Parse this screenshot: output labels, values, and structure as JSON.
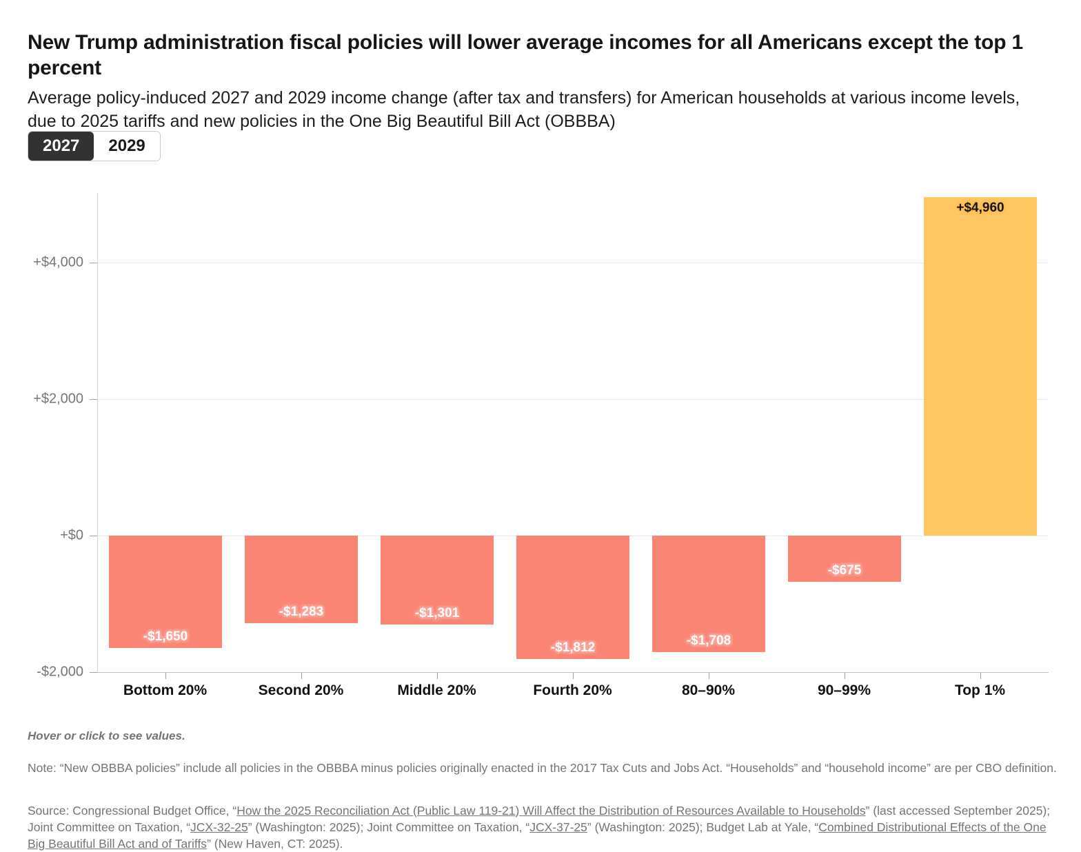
{
  "header": {
    "title": "New Trump administration fiscal policies will lower average incomes for all Americans except the top 1 percent",
    "subtitle": "Average policy-induced 2027 and 2029 income change (after tax and transfers) for American households at various income levels, due to 2025 tariffs and new policies in the One Big Beautiful Bill Act (OBBBA)"
  },
  "toggle": {
    "options": [
      {
        "label": "2027",
        "selected": true
      },
      {
        "label": "2029",
        "selected": false
      }
    ]
  },
  "chart_data": {
    "type": "bar",
    "title": "Average policy-induced 2027 and 2029 income change (after tax and transfers)",
    "selected_series": "2027",
    "categories": [
      "Bottom 20%",
      "Second 20%",
      "Middle 20%",
      "Fourth 20%",
      "80–90%",
      "90–99%",
      "Top 1%"
    ],
    "series": [
      {
        "name": "2027",
        "values": [
          -1650,
          -1283,
          -1301,
          -1812,
          -1708,
          -675,
          4960
        ],
        "labels": [
          "-$1,650",
          "-$1,283",
          "-$1,301",
          "-$1,812",
          "-$1,708",
          "-$675",
          "+$4,960"
        ]
      }
    ],
    "yticks": [
      {
        "label": "+$4,000",
        "value": 4000
      },
      {
        "label": "+$2,000",
        "value": 2000
      },
      {
        "label": "+$0",
        "value": 0
      },
      {
        "label": "-$2,000",
        "value": -2000
      }
    ],
    "ylim": [
      -2000,
      5020
    ],
    "grid": true,
    "legend_position": "none",
    "colors": {
      "negative": "#FA8575",
      "positive": "#FFC763"
    }
  },
  "footer": {
    "hover_note": "Hover or click to see values.",
    "note": "Note: “New OBBBA policies” include all policies in the OBBBA minus policies originally enacted in the 2017 Tax Cuts and Jobs Act. “Households” and “household income” are per CBO definition.",
    "source_segments": [
      {
        "text": "Source: Congressional Budget Office, “",
        "link": false
      },
      {
        "text": "How the 2025 Reconciliation Act (Public Law 119-21) Will Affect the Distribution of Resources Available to Households",
        "link": true
      },
      {
        "text": "” (last accessed September 2025); Joint Committee on Taxation, “",
        "link": false
      },
      {
        "text": "JCX-32-25",
        "link": true
      },
      {
        "text": "” (Washington: 2025); Joint Committee on Taxation, “",
        "link": false
      },
      {
        "text": "JCX-37-25",
        "link": true
      },
      {
        "text": "” (Washington: 2025); Budget Lab at Yale, “",
        "link": false
      },
      {
        "text": "Combined Distributional Effects of the One Big Beautiful Bill Act and of Tariffs",
        "link": true
      },
      {
        "text": "” (New Haven, CT: 2025).",
        "link": false
      }
    ]
  }
}
